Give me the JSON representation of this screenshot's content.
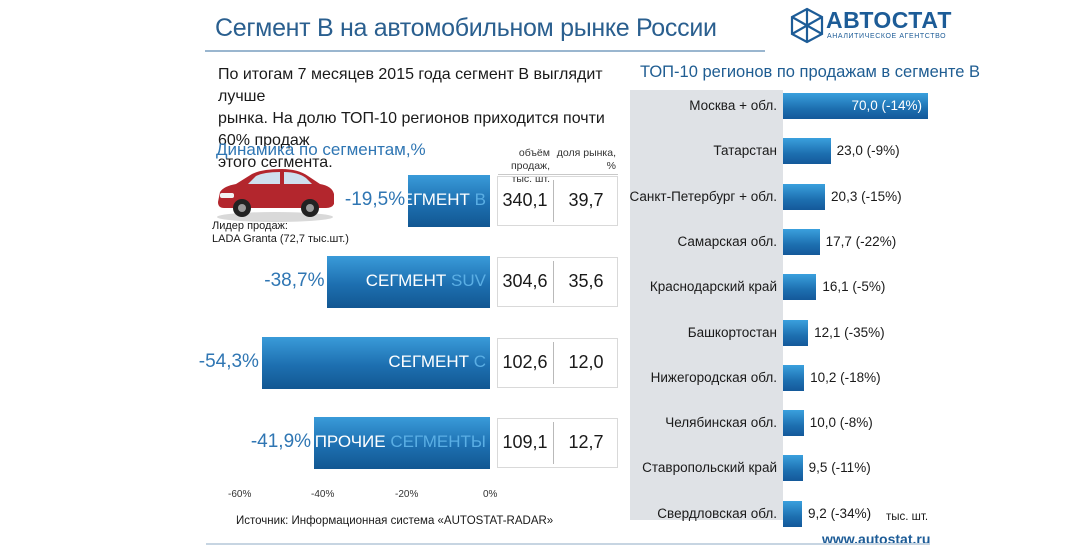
{
  "header": {
    "title": "Сегмент В на автомобильном рынке России",
    "logo_text": "АВТОСТАТ",
    "logo_subtitle": "АНАЛИТИЧЕСКОЕ АГЕНТСТВО"
  },
  "intro": {
    "line1": "По итогам 7 месяцев 2015 года сегмент В выглядит лучше",
    "line2": "рынка. На долю ТОП-10 регионов приходится почти 60% продаж",
    "line3": "этого сегмента."
  },
  "leader": {
    "line1": "Лидер продаж:",
    "line2": "LADA Granta (72,7 тыс.шт.)"
  },
  "footer": {
    "source": "Источник: Информационная система «AUTOSTAT-RADAR»",
    "unit": "тыс. шт.",
    "site": "www.autostat.ru"
  },
  "colors": {
    "title": "#2a5f8f",
    "bar": "#1d6fb0",
    "accent": "#2f76b3"
  },
  "chart_data": [
    {
      "type": "bar",
      "title": "Динамика по сегментам,%",
      "column_headers": {
        "volume_line1": "объём продаж,",
        "volume_line2": "тыс. шт.",
        "share_line1": "доля рынка,",
        "share_line2": "%"
      },
      "categories": [
        "СЕГМЕНТ В",
        "СЕГМЕНТ SUV",
        "СЕГМЕНТ С",
        "ПРОЧИЕ СЕГМЕНТЫ"
      ],
      "labels": [
        {
          "main": "СЕГМЕНТ ",
          "hl": "В"
        },
        {
          "main": "СЕГМЕНТ ",
          "hl": "SUV"
        },
        {
          "main": "СЕГМЕНТ ",
          "hl": "С"
        },
        {
          "main": "ПРОЧИЕ ",
          "hl": "СЕГМЕНТЫ"
        }
      ],
      "change_pct": [
        -19.5,
        -38.7,
        -54.3,
        -41.9
      ],
      "change_labels": [
        "-19,5%",
        "-38,7%",
        "-54,3%",
        "-41,9%"
      ],
      "volume": [
        "340,1",
        "304,6",
        "102,6",
        "109,1"
      ],
      "share": [
        "39,7",
        "35,6",
        "12,0",
        "12,7"
      ],
      "xlim": [
        -60,
        0
      ],
      "xticks": [
        "-60%",
        "-40%",
        "-20%",
        "0%"
      ]
    },
    {
      "type": "bar",
      "title": "ТОП-10 регионов по продажам в сегменте В",
      "categories": [
        "Москва + обл.",
        "Татарстан",
        "Санкт-Петербург + обл.",
        "Самарская обл.",
        "Краснодарский край",
        "Башкортостан",
        "Нижегородская обл.",
        "Челябинская обл.",
        "Ставропольский край",
        "Свердловская обл."
      ],
      "values": [
        70.0,
        23.0,
        20.3,
        17.7,
        16.1,
        12.1,
        10.2,
        10.0,
        9.5,
        9.2
      ],
      "value_labels": [
        "70,0 (-14%)",
        "23,0 (-9%)",
        "20,3 (-15%)",
        "17,7 (-22%)",
        "16,1 (-5%)",
        "12,1 (-35%)",
        "10,2 (-18%)",
        "10,0 (-8%)",
        "9,5 (-11%)",
        "9,2 (-34%)"
      ],
      "unit": "тыс. шт."
    }
  ]
}
